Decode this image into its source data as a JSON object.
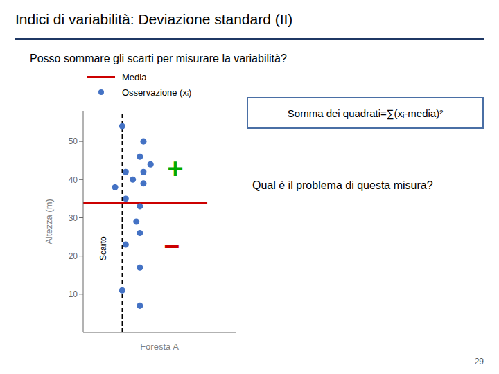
{
  "chart_data": {
    "type": "scatter",
    "title": "Indici di variabilità: Deviazione standard (II)",
    "subtitle": "Posso sommare gli scarti per misurare la variabilità?",
    "x_label": "Foresta A",
    "y_label": "Altezza (m)",
    "xlim": [
      -0.55,
      1.6
    ],
    "ylim": [
      0,
      58
    ],
    "yticks": [
      10,
      20,
      30,
      40,
      50
    ],
    "tick_labels": "y",
    "grid": false,
    "series": [
      {
        "name": "Osservazione (xᵢ)",
        "color": "#4472c4",
        "marker": "circle",
        "x": [
          0.0,
          0.3,
          0.25,
          0.4,
          0.05,
          0.3,
          0.15,
          0.3,
          -0.1,
          0.05,
          0.25,
          0.2,
          0.25,
          0.05,
          0.25,
          0.0,
          0.25
        ],
        "values": [
          54,
          50,
          46,
          44,
          42,
          42,
          40,
          39,
          38,
          35,
          33,
          29,
          26,
          23,
          17,
          11,
          7
        ]
      }
    ],
    "reference_lines": [
      {
        "name": "Media",
        "y": 34,
        "x": [
          -0.55,
          1.2
        ],
        "color": "#cc0000",
        "line_style": "solid"
      },
      {
        "x": 0.0,
        "color": "#000000",
        "line_style": "dashed"
      }
    ],
    "annotations": [
      {
        "text": "+",
        "x": 0.75,
        "y": 43,
        "color": "#00aa00"
      },
      {
        "text": "–",
        "x": 0.7,
        "y": 23,
        "color": "#cc0000"
      },
      {
        "text": "Scarto",
        "x": -0.27,
        "y": 22,
        "color": "#000000",
        "vertical": true
      }
    ],
    "box_text": "Somma dei quadrati=∑(xᵢ-media)²",
    "question": "Qual è il problema di questa misura?",
    "page_number": "29"
  }
}
